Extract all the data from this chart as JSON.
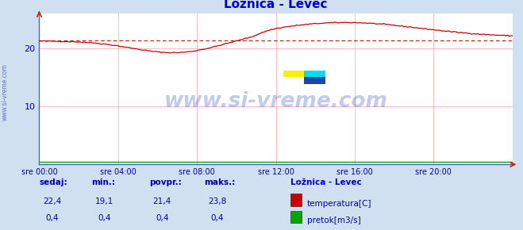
{
  "title": "Ložnica - Levec",
  "title_color": "#0000cc",
  "bg_color": "#d0e0f0",
  "plot_bg_color": "#ffffff",
  "x_label_color": "#0000aa",
  "y_label_color": "#0000aa",
  "grid_color": "#ffb0b0",
  "x_ticks": [
    0,
    4,
    8,
    12,
    16,
    20
  ],
  "x_tick_labels": [
    "sre 00:00",
    "sre 04:00",
    "sre 08:00",
    "sre 12:00",
    "sre 16:00",
    "sre 20:00"
  ],
  "y_ticks": [
    10,
    20
  ],
  "y_lim": [
    0,
    26
  ],
  "x_lim": [
    0,
    24
  ],
  "temp_color": "#cc0000",
  "flow_color": "#00aa00",
  "avg_value": 21.4,
  "watermark_text": "www.si-vreme.com",
  "watermark_color": "#3355bb",
  "sidebar_text": "www.si-vreme.com",
  "sidebar_color": "#4466cc",
  "legend_title": "Ložnica - Levec",
  "legend_title_color": "#0000cc",
  "legend_items": [
    "temperatura[C]",
    "pretok[m3/s]"
  ],
  "legend_colors": [
    "#cc0000",
    "#00aa00"
  ],
  "stats_headers": [
    "sedaj:",
    "min.:",
    "povpr.:",
    "maks.:"
  ],
  "stats_temp": [
    "22,4",
    "19,1",
    "21,4",
    "23,8"
  ],
  "stats_flow": [
    "0,4",
    "0,4",
    "0,4",
    "0,4"
  ],
  "stats_color": "#0000aa",
  "figsize": [
    6.59,
    2.9
  ],
  "dpi": 100
}
